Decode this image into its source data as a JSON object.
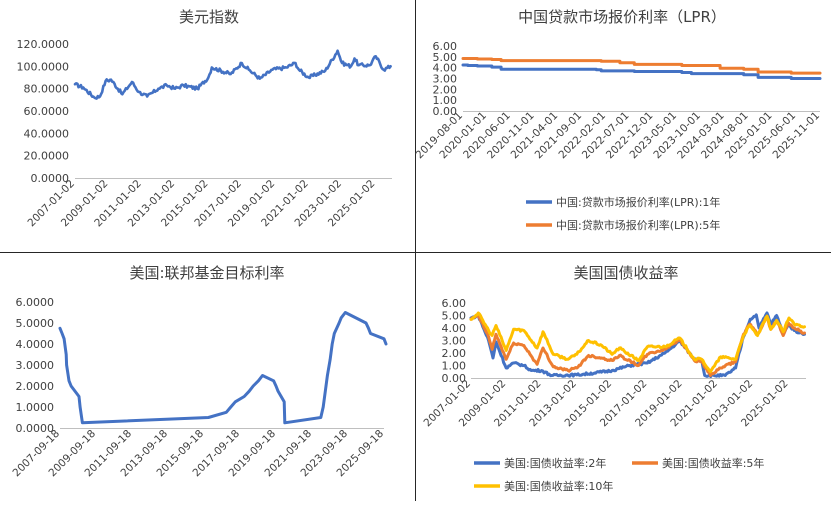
{
  "chart_data": [
    {
      "type": "line",
      "title": "美元指数",
      "yticks": [
        "120.0000",
        "100.0000",
        "80.0000",
        "60.0000",
        "40.0000",
        "20.0000",
        "0.0000"
      ],
      "xticks": [
        "2007-01-02",
        "2009-01-02",
        "2011-01-02",
        "2013-01-02",
        "2015-01-02",
        "2017-01-02",
        "2019-01-02",
        "2021-01-02",
        "2023-01-02",
        "2025-01-02"
      ],
      "ylim": [
        0,
        120
      ],
      "xlim": [
        "2007-01-02",
        "2025-12-31"
      ],
      "series": [
        {
          "color": "#4472C4",
          "points": [
            [
              "2007-01-02",
              84
            ],
            [
              "2007-07-02",
              81
            ],
            [
              "2008-03-02",
              72
            ],
            [
              "2008-07-02",
              73
            ],
            [
              "2008-11-02",
              87
            ],
            [
              "2009-03-02",
              88
            ],
            [
              "2009-11-02",
              75
            ],
            [
              "2010-06-02",
              86
            ],
            [
              "2010-11-02",
              77
            ],
            [
              "2011-05-02",
              73
            ],
            [
              "2012-01-02",
              80
            ],
            [
              "2012-07-02",
              83
            ],
            [
              "2013-01-02",
              80
            ],
            [
              "2013-07-02",
              83
            ],
            [
              "2014-05-02",
              80
            ],
            [
              "2014-12-31",
              90
            ],
            [
              "2015-03-15",
              99
            ],
            [
              "2016-05-02",
              93
            ],
            [
              "2016-12-31",
              103
            ],
            [
              "2017-06-02",
              97
            ],
            [
              "2018-01-31",
              89
            ],
            [
              "2018-11-02",
              97
            ],
            [
              "2019-09-02",
              99
            ],
            [
              "2020-03-20",
              103
            ],
            [
              "2020-06-02",
              97
            ],
            [
              "2021-01-02",
              90
            ],
            [
              "2021-12-31",
              96
            ],
            [
              "2022-09-28",
              114
            ],
            [
              "2023-01-02",
              103
            ],
            [
              "2023-07-15",
              100
            ],
            [
              "2023-10-02",
              107
            ],
            [
              "2024-01-02",
              101
            ],
            [
              "2024-09-02",
              101
            ],
            [
              "2025-01-10",
              109
            ],
            [
              "2025-07-01",
              97
            ],
            [
              "2025-11-30",
              100
            ]
          ]
        }
      ]
    },
    {
      "type": "line",
      "title": "中国贷款市场报价利率（LPR）",
      "yticks": [
        "6.00",
        "5.00",
        "4.00",
        "3.00",
        "2.00",
        "1.00",
        "0.00"
      ],
      "xticks": [
        "2019-08-01",
        "2020-01-01",
        "2020-06-01",
        "2020-11-01",
        "2021-04-01",
        "2021-09-01",
        "2022-02-01",
        "2022-07-01",
        "2022-12-01",
        "2023-05-01",
        "2023-10-01",
        "2024-03-01",
        "2024-08-01",
        "2025-01-01",
        "2025-06-01",
        "2025-11-01"
      ],
      "ylim": [
        0,
        6
      ],
      "xlim": [
        "2019-08-01",
        "2025-11-01"
      ],
      "legend": "bottom",
      "series": [
        {
          "name": "中国:贷款市场报价利率(LPR):1年",
          "color": "#4472C4",
          "steps": [
            [
              "2019-08-01",
              4.25
            ],
            [
              "2019-09-01",
              4.2
            ],
            [
              "2019-11-01",
              4.15
            ],
            [
              "2020-02-01",
              4.05
            ],
            [
              "2020-04-01",
              3.85
            ],
            [
              "2021-12-01",
              3.8
            ],
            [
              "2022-01-01",
              3.7
            ],
            [
              "2022-08-01",
              3.65
            ],
            [
              "2023-06-01",
              3.55
            ],
            [
              "2023-08-01",
              3.45
            ],
            [
              "2024-07-01",
              3.35
            ],
            [
              "2024-10-01",
              3.1
            ],
            [
              "2025-05-01",
              3.0
            ],
            [
              "2025-11-01",
              3.0
            ]
          ]
        },
        {
          "name": "中国:贷款市场报价利率(LPR):5年",
          "color": "#ED7D31",
          "steps": [
            [
              "2019-08-01",
              4.85
            ],
            [
              "2019-11-01",
              4.8
            ],
            [
              "2020-02-01",
              4.75
            ],
            [
              "2020-04-01",
              4.65
            ],
            [
              "2022-01-01",
              4.6
            ],
            [
              "2022-05-01",
              4.45
            ],
            [
              "2022-08-01",
              4.3
            ],
            [
              "2023-06-01",
              4.2
            ],
            [
              "2024-02-01",
              3.95
            ],
            [
              "2024-07-01",
              3.85
            ],
            [
              "2024-10-01",
              3.6
            ],
            [
              "2025-05-01",
              3.5
            ],
            [
              "2025-11-01",
              3.5
            ]
          ]
        }
      ]
    },
    {
      "type": "line",
      "title": "美国:联邦基金目标利率",
      "yticks": [
        "6.0000",
        "5.0000",
        "4.0000",
        "3.0000",
        "2.0000",
        "1.0000",
        "0.0000"
      ],
      "xticks": [
        "2007-09-18",
        "2009-09-18",
        "2011-09-18",
        "2013-09-18",
        "2015-09-18",
        "2017-09-18",
        "2019-09-18",
        "2021-09-18",
        "2023-09-18",
        "2025-09-18"
      ],
      "ylim": [
        0,
        6
      ],
      "xlim": [
        "2007-09-18",
        "2025-09-18"
      ],
      "series": [
        {
          "color": "#4472C4",
          "points": [
            [
              "2007-09-18",
              4.75
            ],
            [
              "2007-10-31",
              4.5
            ],
            [
              "2007-12-11",
              4.25
            ],
            [
              "2008-01-22",
              3.5
            ],
            [
              "2008-01-30",
              3.0
            ],
            [
              "2008-03-18",
              2.25
            ],
            [
              "2008-04-30",
              2.0
            ],
            [
              "2008-10-08",
              1.5
            ],
            [
              "2008-10-29",
              1.0
            ],
            [
              "2008-12-16",
              0.25
            ],
            [
              "2015-12-16",
              0.5
            ],
            [
              "2016-12-14",
              0.75
            ],
            [
              "2017-03-15",
              1.0
            ],
            [
              "2017-06-14",
              1.25
            ],
            [
              "2017-12-13",
              1.5
            ],
            [
              "2018-03-21",
              1.75
            ],
            [
              "2018-06-13",
              2.0
            ],
            [
              "2018-09-26",
              2.25
            ],
            [
              "2018-12-19",
              2.5
            ],
            [
              "2019-07-31",
              2.25
            ],
            [
              "2019-09-18",
              2.0
            ],
            [
              "2019-10-30",
              1.75
            ],
            [
              "2020-03-03",
              1.25
            ],
            [
              "2020-03-15",
              0.25
            ],
            [
              "2022-03-16",
              0.5
            ],
            [
              "2022-05-04",
              1.0
            ],
            [
              "2022-06-15",
              1.75
            ],
            [
              "2022-07-27",
              2.5
            ],
            [
              "2022-09-21",
              3.25
            ],
            [
              "2022-11-02",
              4.0
            ],
            [
              "2022-12-14",
              4.5
            ],
            [
              "2023-02-01",
              4.75
            ],
            [
              "2023-03-22",
              5.0
            ],
            [
              "2023-05-03",
              5.25
            ],
            [
              "2023-07-26",
              5.5
            ],
            [
              "2024-09-18",
              5.0
            ],
            [
              "2024-11-07",
              4.75
            ],
            [
              "2024-12-18",
              4.5
            ],
            [
              "2025-09-17",
              4.25
            ],
            [
              "2025-10-29",
              4.0
            ]
          ]
        }
      ]
    },
    {
      "type": "line",
      "title": "美国国债收益率",
      "yticks": [
        "6.00",
        "5.00",
        "4.00",
        "3.00",
        "2.00",
        "1.00",
        "0.00"
      ],
      "xticks": [
        "2007-01-02",
        "2009-01-02",
        "2011-01-02",
        "2013-01-02",
        "2015-01-02",
        "2017-01-02",
        "2019-01-02",
        "2021-01-02",
        "2023-01-02",
        "2025-01-02"
      ],
      "ylim": [
        0,
        6
      ],
      "xlim": [
        "2007-01-02",
        "2025-12-31"
      ],
      "legend": "bottom",
      "series": [
        {
          "name": "美国:国债收益率:2年",
          "color": "#4472C4",
          "points": [
            [
              "2007-01-02",
              4.8
            ],
            [
              "2007-06-02",
              5.0
            ],
            [
              "2008-01-02",
              3.0
            ],
            [
              "2008-04-02",
              1.6
            ],
            [
              "2008-06-02",
              2.9
            ],
            [
              "2008-12-31",
              0.8
            ],
            [
              "2009-06-02",
              1.2
            ],
            [
              "2010-01-02",
              1.0
            ],
            [
              "2010-06-02",
              0.6
            ],
            [
              "2011-01-02",
              0.6
            ],
            [
              "2011-08-02",
              0.2
            ],
            [
              "2013-01-02",
              0.25
            ],
            [
              "2014-01-02",
              0.4
            ],
            [
              "2015-01-02",
              0.6
            ],
            [
              "2016-01-02",
              1.0
            ],
            [
              "2017-01-02",
              1.2
            ],
            [
              "2018-01-02",
              2.0
            ],
            [
              "2018-11-02",
              2.95
            ],
            [
              "2019-09-02",
              1.5
            ],
            [
              "2020-02-01",
              1.4
            ],
            [
              "2020-04-02",
              0.2
            ],
            [
              "2021-06-02",
              0.2
            ],
            [
              "2022-01-02",
              0.8
            ],
            [
              "2022-06-15",
              3.3
            ],
            [
              "2022-11-02",
              4.7
            ],
            [
              "2023-03-08",
              5.05
            ],
            [
              "2023-05-02",
              4.0
            ],
            [
              "2023-10-15",
              5.2
            ],
            [
              "2024-01-02",
              4.3
            ],
            [
              "2024-05-02",
              5.0
            ],
            [
              "2024-09-15",
              3.55
            ],
            [
              "2025-01-02",
              4.3
            ],
            [
              "2025-05-02",
              3.8
            ],
            [
              "2025-11-30",
              3.5
            ]
          ]
        },
        {
          "name": "美国:国债收益率:5年",
          "color": "#ED7D31",
          "points": [
            [
              "2007-01-02",
              4.7
            ],
            [
              "2007-06-02",
              5.0
            ],
            [
              "2008-01-02",
              3.3
            ],
            [
              "2008-03-15",
              2.3
            ],
            [
              "2008-06-02",
              3.5
            ],
            [
              "2008-12-31",
              1.5
            ],
            [
              "2009-06-02",
              2.8
            ],
            [
              "2010-01-02",
              2.6
            ],
            [
              "2010-10-02",
              1.1
            ],
            [
              "2011-02-02",
              2.4
            ],
            [
              "2011-09-02",
              0.9
            ],
            [
              "2012-07-02",
              0.6
            ],
            [
              "2013-01-02",
              0.8
            ],
            [
              "2013-09-02",
              1.8
            ],
            [
              "2014-06-02",
              1.6
            ],
            [
              "2015-01-02",
              1.4
            ],
            [
              "2015-06-02",
              1.8
            ],
            [
              "2016-07-02",
              1.0
            ],
            [
              "2017-01-02",
              1.9
            ],
            [
              "2018-01-02",
              2.3
            ],
            [
              "2018-11-02",
              3.1
            ],
            [
              "2019-09-02",
              1.4
            ],
            [
              "2020-02-01",
              1.3
            ],
            [
              "2020-08-02",
              0.2
            ],
            [
              "2021-03-02",
              0.8
            ],
            [
              "2021-12-31",
              1.3
            ],
            [
              "2022-06-15",
              3.5
            ],
            [
              "2022-10-20",
              4.3
            ],
            [
              "2023-04-02",
              3.5
            ],
            [
              "2023-10-15",
              4.9
            ],
            [
              "2024-01-02",
              3.9
            ],
            [
              "2024-05-02",
              4.6
            ],
            [
              "2024-09-15",
              3.4
            ],
            [
              "2025-01-02",
              4.4
            ],
            [
              "2025-05-02",
              4.0
            ],
            [
              "2025-11-30",
              3.6
            ]
          ]
        },
        {
          "name": "美国:国债收益率:10年",
          "color": "#FFC000",
          "points": [
            [
              "2007-01-02",
              4.7
            ],
            [
              "2007-06-02",
              5.2
            ],
            [
              "2008-01-02",
              3.8
            ],
            [
              "2008-03-15",
              3.4
            ],
            [
              "2008-06-02",
              4.2
            ],
            [
              "2008-12-31",
              2.2
            ],
            [
              "2009-06-02",
              3.9
            ],
            [
              "2010-01-02",
              3.8
            ],
            [
              "2010-10-02",
              2.4
            ],
            [
              "2011-02-02",
              3.7
            ],
            [
              "2011-09-02",
              1.9
            ],
            [
              "2012-07-02",
              1.5
            ],
            [
              "2013-01-02",
              1.9
            ],
            [
              "2013-09-02",
              3.0
            ],
            [
              "2014-06-02",
              2.6
            ],
            [
              "2015-01-02",
              1.9
            ],
            [
              "2015-06-02",
              2.4
            ],
            [
              "2016-07-02",
              1.4
            ],
            [
              "2017-01-02",
              2.5
            ],
            [
              "2018-01-02",
              2.5
            ],
            [
              "2018-11-02",
              3.2
            ],
            [
              "2019-09-02",
              1.5
            ],
            [
              "2020-02-01",
              1.5
            ],
            [
              "2020-08-02",
              0.5
            ],
            [
              "2021-03-02",
              1.7
            ],
            [
              "2021-12-31",
              1.5
            ],
            [
              "2022-06-15",
              3.4
            ],
            [
              "2022-10-20",
              4.2
            ],
            [
              "2023-04-02",
              3.4
            ],
            [
              "2023-10-15",
              4.95
            ],
            [
              "2024-01-02",
              3.9
            ],
            [
              "2024-05-02",
              4.6
            ],
            [
              "2024-09-15",
              3.7
            ],
            [
              "2025-01-13",
              4.8
            ],
            [
              "2025-05-02",
              4.3
            ],
            [
              "2025-11-30",
              4.1
            ]
          ]
        }
      ]
    }
  ]
}
